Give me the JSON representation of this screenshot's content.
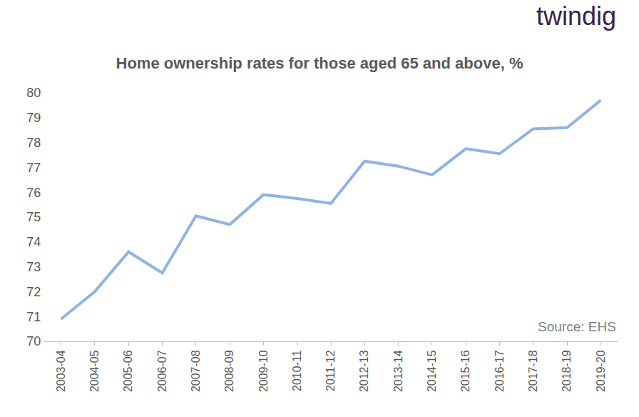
{
  "chart_data": {
    "type": "line",
    "title": "Home ownership rates for those aged 65 and above, %",
    "categories": [
      "2003-04",
      "2004-05",
      "2005-06",
      "2006-07",
      "2007-08",
      "2008-09",
      "2009-10",
      "2010-11",
      "2011-12",
      "2012-13",
      "2013-14",
      "2014-15",
      "2015-16",
      "2016-17",
      "2017-18",
      "2018-19",
      "2019-20"
    ],
    "values": [
      70.9,
      72.0,
      73.6,
      72.75,
      75.05,
      74.7,
      75.9,
      75.75,
      75.55,
      77.25,
      77.05,
      76.7,
      77.75,
      77.55,
      78.55,
      78.6,
      79.7
    ],
    "color": "#8fb4e3",
    "ylim": [
      70,
      80
    ],
    "yticks": [
      70,
      71,
      72,
      73,
      74,
      75,
      76,
      77,
      78,
      79,
      80
    ],
    "grid": false,
    "logo": "twindig",
    "source": "Source: EHS"
  }
}
